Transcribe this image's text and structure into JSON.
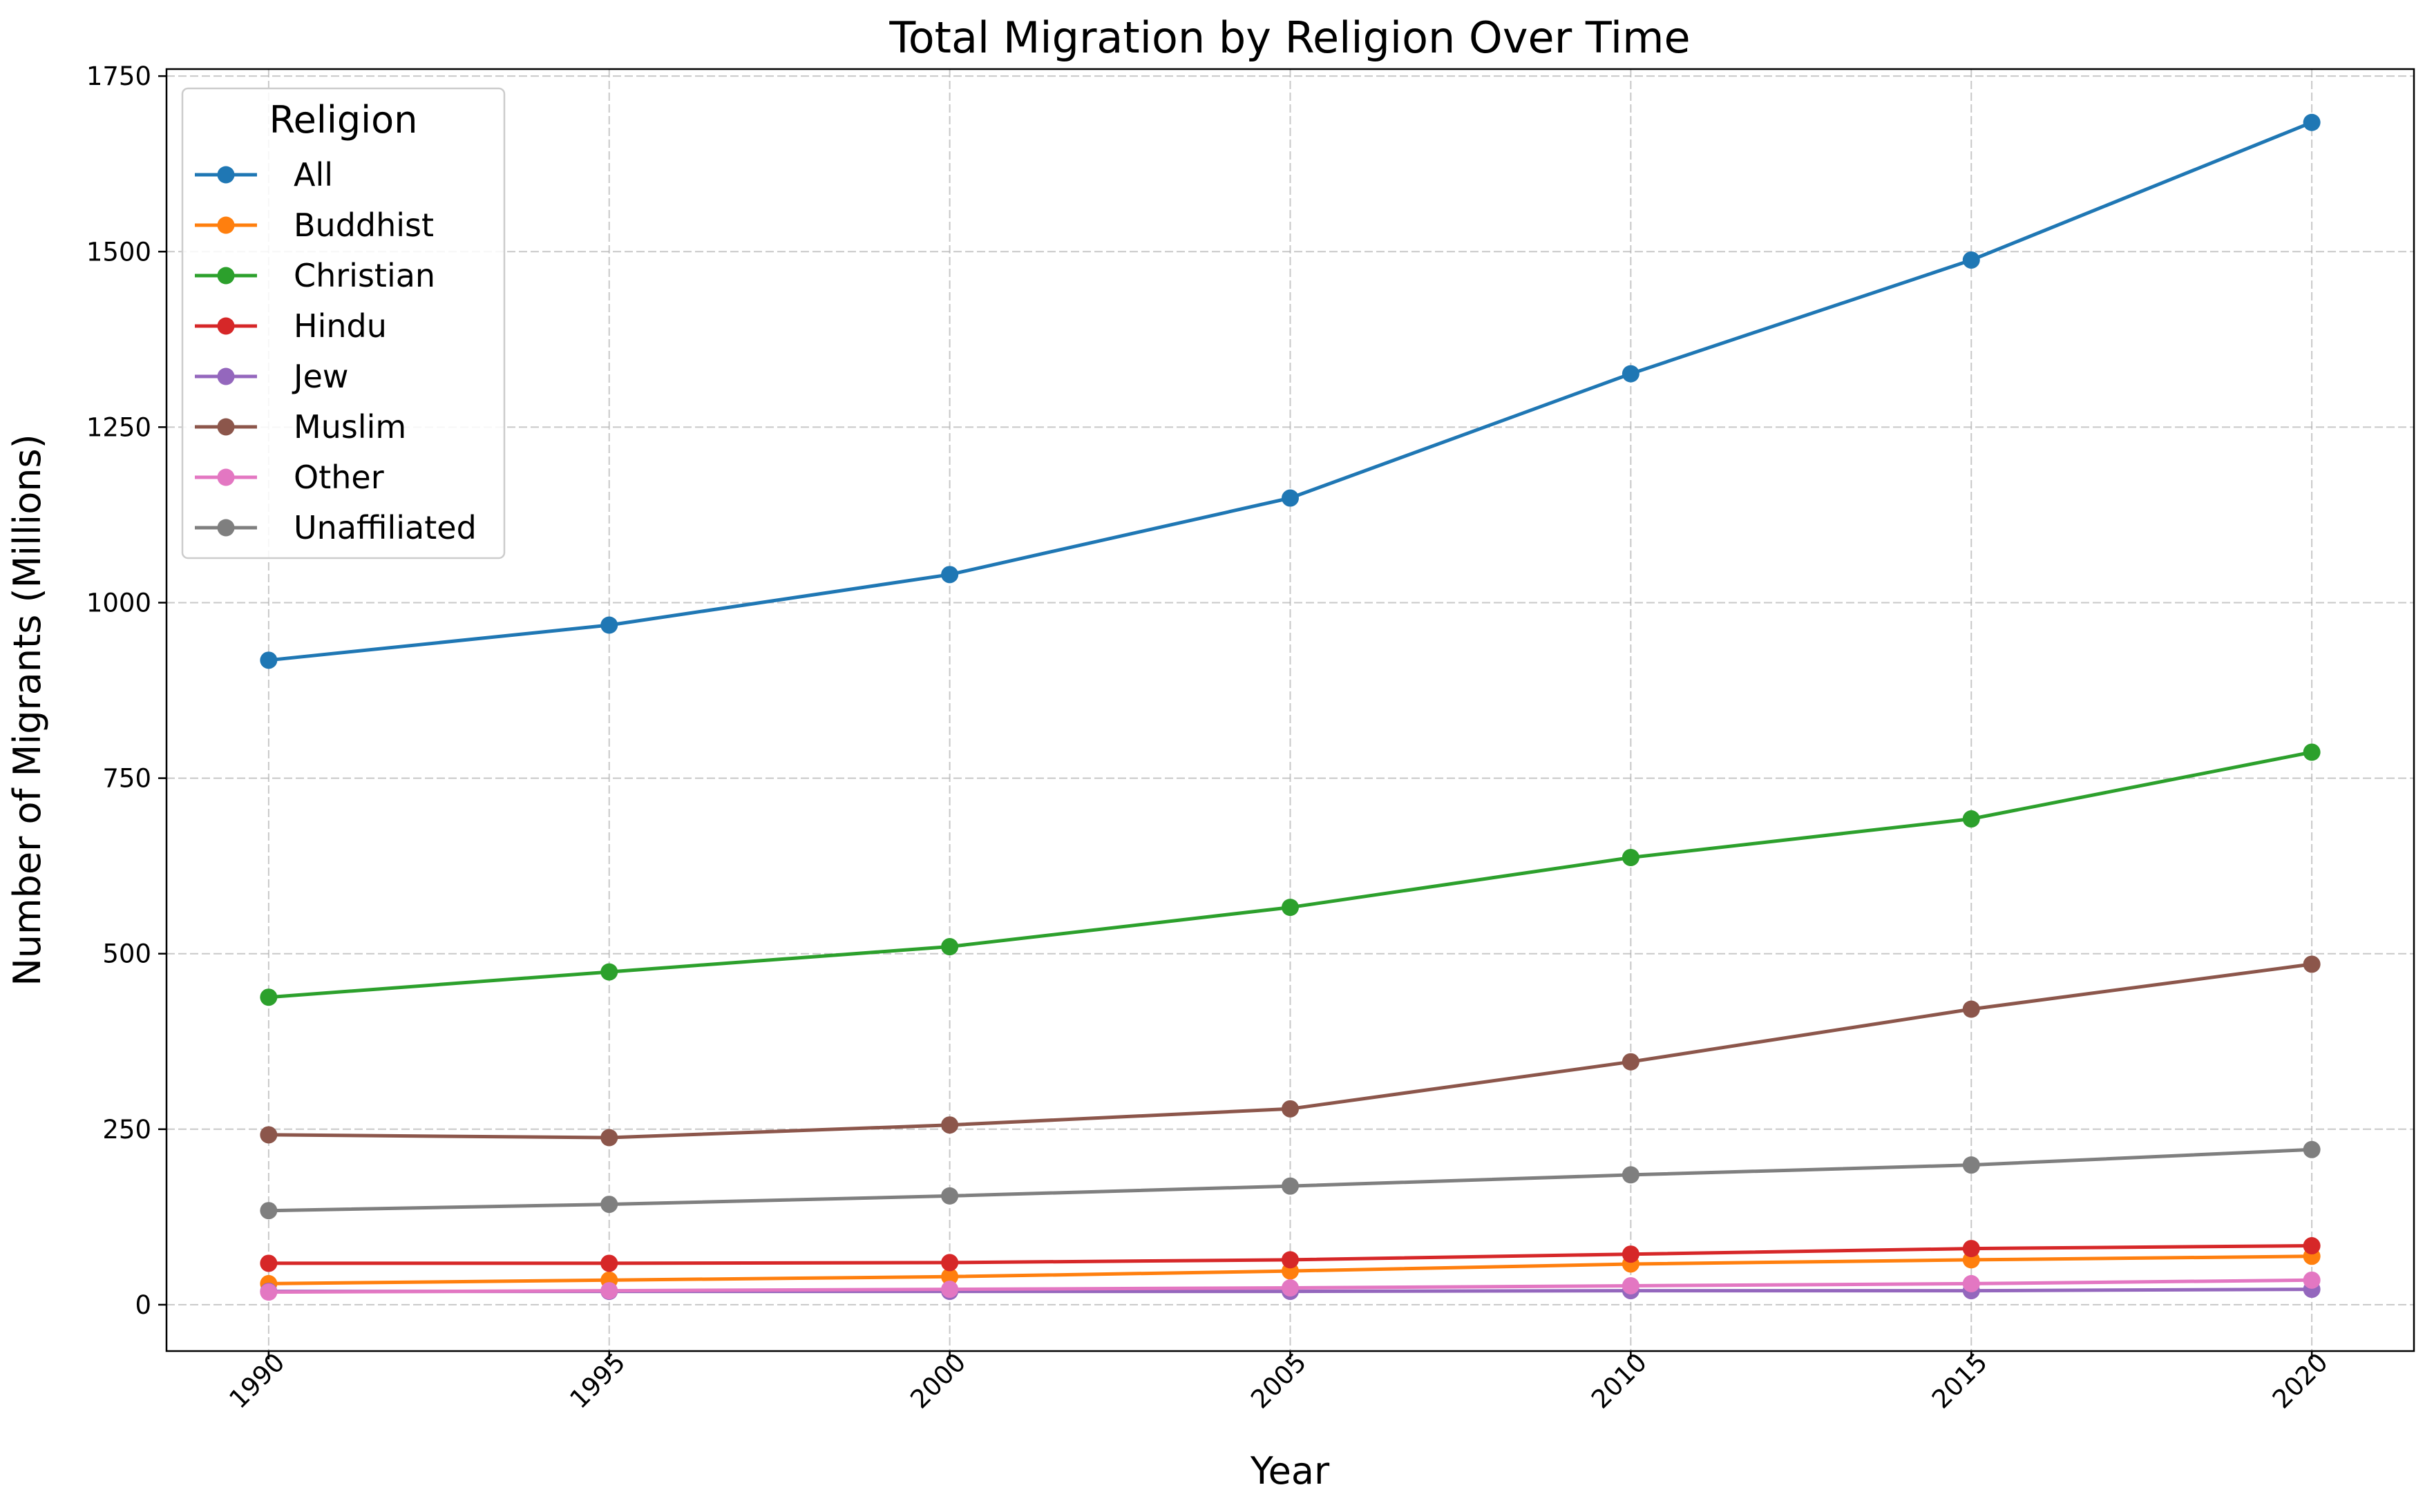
{
  "chart_data": {
    "type": "line",
    "title": "Total Migration by Religion Over Time",
    "xlabel": "Year",
    "ylabel": "Number of Migrants (Millions)",
    "x": [
      1990,
      1995,
      2000,
      2005,
      2010,
      2015,
      2020
    ],
    "xticks": [
      "1990",
      "1995",
      "2000",
      "2005",
      "2010",
      "2015",
      "2020"
    ],
    "xlim": [
      1988.5,
      2021.5
    ],
    "ylim": [
      -66,
      1760
    ],
    "yticks": [
      0,
      250,
      500,
      750,
      1000,
      1250,
      1500,
      1750
    ],
    "grid": true,
    "legend_title": "Religion",
    "legend_location": "top-left",
    "series": [
      {
        "name": "All",
        "color": "#1f77b4",
        "values": [
          918,
          968,
          1040,
          1149,
          1326,
          1488,
          1684
        ]
      },
      {
        "name": "Buddhist",
        "color": "#ff7f0e",
        "values": [
          30,
          35,
          40,
          48,
          58,
          64,
          69
        ]
      },
      {
        "name": "Christian",
        "color": "#2ca02c",
        "values": [
          438,
          474,
          510,
          566,
          637,
          692,
          787
        ]
      },
      {
        "name": "Hindu",
        "color": "#d62728",
        "values": [
          59,
          59,
          60,
          64,
          72,
          80,
          84
        ]
      },
      {
        "name": "Jew",
        "color": "#9467bd",
        "values": [
          19,
          19,
          19,
          19,
          20,
          20,
          22
        ]
      },
      {
        "name": "Muslim",
        "color": "#8c564b",
        "values": [
          242,
          238,
          256,
          279,
          346,
          421,
          485
        ]
      },
      {
        "name": "Other",
        "color": "#e377c2",
        "values": [
          18,
          20,
          22,
          24,
          27,
          30,
          35
        ]
      },
      {
        "name": "Unaffiliated",
        "color": "#7f7f7f",
        "values": [
          134,
          143,
          155,
          169,
          185,
          199,
          221
        ]
      }
    ]
  }
}
